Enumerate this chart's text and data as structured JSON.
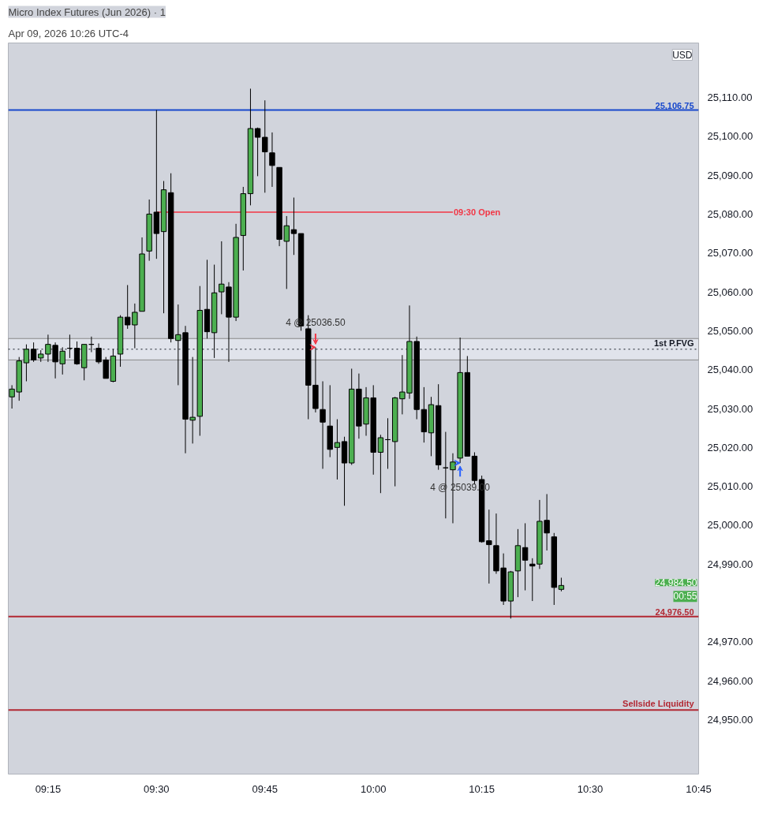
{
  "chart_data": {
    "type": "candlestick",
    "title": "Micro Index Futures (Jun 2026) · 1",
    "subtitle": "Apr 09, 2026 10:26 UTC-4",
    "x": [
      9.1667,
      9.1833,
      9.2,
      9.2167,
      9.2333,
      9.25,
      9.2667,
      9.2833,
      9.3,
      9.3167,
      9.3333,
      9.35,
      9.3667,
      9.3833,
      9.4,
      9.4167,
      9.4333,
      9.45,
      9.4667,
      9.4833,
      9.5,
      9.5167,
      9.5333,
      9.55,
      9.5667,
      9.5833,
      9.6,
      9.6167,
      9.6333,
      9.65,
      9.6667,
      9.6833,
      9.7,
      9.7167,
      9.7333,
      9.75,
      9.7667,
      9.7833,
      9.8,
      9.8167,
      9.8333,
      9.85,
      9.8667,
      9.8833,
      9.9,
      9.9167,
      9.9333,
      9.95,
      9.9667,
      9.9833,
      10.0,
      10.0167,
      10.0333,
      10.05,
      10.0667,
      10.0833,
      10.1,
      10.1167,
      10.1333,
      10.15,
      10.1667,
      10.1833,
      10.2,
      10.2167,
      10.2333,
      10.25,
      10.2667,
      10.2833,
      10.3,
      10.3167,
      10.3333,
      10.35,
      10.3667,
      10.3833,
      10.4,
      10.4167,
      10.4333
    ],
    "ohlc": [
      [
        25033,
        25036,
        25030,
        25035
      ],
      [
        25034.25,
        25043.25,
        25032,
        25042.25
      ],
      [
        25041.75,
        25046.5,
        25037,
        25045.25
      ],
      [
        25045.25,
        25047,
        25042,
        25042.5
      ],
      [
        25043,
        25045,
        25042,
        25044
      ],
      [
        25044,
        25049,
        25042,
        25046.5
      ],
      [
        25046.25,
        25047,
        25037.75,
        25042
      ],
      [
        25041.5,
        25045.75,
        25038.75,
        25044.75
      ],
      [
        25045.5,
        25049,
        25043,
        25045.5
      ],
      [
        25045.5,
        25047.25,
        25041.25,
        25041.5
      ],
      [
        25040.5,
        25046.5,
        25037.25,
        25046.5
      ],
      [
        25046.5,
        25048.5,
        25044.5,
        25046.5
      ],
      [
        25045.5,
        25046.75,
        25041.5,
        25042
      ],
      [
        25042.5,
        25043.25,
        25037.75,
        25037.75
      ],
      [
        25037,
        25045.25,
        25036.75,
        25043.5
      ],
      [
        25044,
        25054,
        25040.75,
        25053.5
      ],
      [
        25053.5,
        25061.75,
        25050.5,
        25051.5
      ],
      [
        25051.5,
        25057,
        25045.5,
        25054.75
      ],
      [
        25055,
        25074,
        25055,
        25069.75
      ],
      [
        25070.5,
        25083.75,
        25068,
        25080
      ],
      [
        25080.5,
        25106.75,
        25068.5,
        25075
      ],
      [
        25075.5,
        25088.5,
        25054.5,
        25086.25
      ],
      [
        25085.5,
        25090.5,
        25047,
        25048
      ],
      [
        25047.5,
        25056.75,
        25036,
        25049
      ],
      [
        25049.5,
        25051.25,
        25018.5,
        25027.25
      ],
      [
        25027,
        25043.25,
        25021,
        25027.75
      ],
      [
        25028,
        25061.5,
        25023,
        25055.25
      ],
      [
        25055.5,
        25068.25,
        25048,
        25049.75
      ],
      [
        25049.5,
        25067,
        25043,
        25059.75
      ],
      [
        25060,
        25073,
        25054.25,
        25062
      ],
      [
        25061.25,
        25062.5,
        25042,
        25053.5
      ],
      [
        25053.5,
        25077.5,
        25052.5,
        25074
      ],
      [
        25074.5,
        25087,
        25065.5,
        25085.25
      ],
      [
        25085.25,
        25112.25,
        25082.25,
        25102
      ],
      [
        25102,
        25102.25,
        25089.75,
        25099.75
      ],
      [
        25099.75,
        25109.25,
        25085.5,
        25096
      ],
      [
        25095.75,
        25101,
        25087,
        25092.5
      ],
      [
        25092,
        25092,
        25071.75,
        25073.5
      ],
      [
        25073,
        25079.5,
        25060.75,
        25077
      ],
      [
        25076,
        25084.25,
        25069.5,
        25075
      ],
      [
        25075,
        25075,
        25050,
        25051.25
      ],
      [
        25050.5,
        25054,
        25027.25,
        25036
      ],
      [
        25036,
        25045.75,
        25029,
        25030
      ],
      [
        25029.75,
        25037,
        25014.5,
        25026.5
      ],
      [
        25025.5,
        25036,
        25017.5,
        25019.5
      ],
      [
        25020,
        25027.25,
        25011.75,
        25021.25
      ],
      [
        25021.5,
        25022.75,
        25005,
        25016
      ],
      [
        25016,
        25040.25,
        25015.5,
        25035
      ],
      [
        25035,
        25039,
        25022.25,
        25025.5
      ],
      [
        25026,
        25035.5,
        25023,
        25032.75
      ],
      [
        25032.75,
        25036,
        25013,
        25018.75
      ],
      [
        25018.75,
        25023.25,
        25008.25,
        25022.5
      ],
      [
        25022,
        25027.5,
        25014.5,
        25022
      ],
      [
        25021.5,
        25033,
        25010,
        25032.75
      ],
      [
        25032.5,
        25043.75,
        25028.5,
        25034.25
      ],
      [
        25034,
        25056.5,
        25032.5,
        25047.25
      ],
      [
        25047.25,
        25048.5,
        25027.25,
        25029.75
      ],
      [
        25029.75,
        25035.5,
        25021.25,
        25024
      ],
      [
        25023.75,
        25033,
        25017.75,
        25031
      ],
      [
        25030.75,
        25036.25,
        25014.25,
        25015.5
      ],
      [
        25014.75,
        25024,
        25001.75,
        25014.75
      ],
      [
        25014.25,
        25018.5,
        25000.5,
        25016.25
      ],
      [
        25017.25,
        25048.25,
        25016,
        25039.25
      ],
      [
        25039.25,
        25043.5,
        25017.75,
        25017.75
      ],
      [
        25017.75,
        25018.75,
        25010.5,
        25011.5
      ],
      [
        25011.75,
        25012.75,
        24995.5,
        24995.75
      ],
      [
        24996,
        25004,
        24985,
        24995
      ],
      [
        24994.75,
        25003,
        24987.5,
        24988.25
      ],
      [
        24989,
        24992.75,
        24979.5,
        24980.5
      ],
      [
        24980.5,
        24988.25,
        24976,
        24988
      ],
      [
        24988.25,
        24999,
        24981.5,
        24994.75
      ],
      [
        24994.25,
        25000.5,
        24983.25,
        24991
      ],
      [
        24990,
        24991.5,
        24980.5,
        24989.5
      ],
      [
        24990,
        25006.5,
        24988.75,
        25001
      ],
      [
        25001.25,
        25008,
        24993.5,
        24998
      ],
      [
        24997,
        24998,
        24979.5,
        24984
      ],
      [
        24983.5,
        24986.5,
        24983,
        24984.5
      ]
    ],
    "colors": [
      "#4caf50",
      "#4caf50",
      "#4caf50",
      "#000000",
      "#4caf50",
      "#4caf50",
      "#000000",
      "#4caf50",
      "#000000",
      "#000000",
      "#4caf50",
      "#000000",
      "#000000",
      "#000000",
      "#4caf50",
      "#4caf50",
      "#000000",
      "#4caf50",
      "#4caf50",
      "#4caf50",
      "#000000",
      "#4caf50",
      "#000000",
      "#4caf50",
      "#000000",
      "#4caf50",
      "#4caf50",
      "#000000",
      "#4caf50",
      "#4caf50",
      "#000000",
      "#4caf50",
      "#4caf50",
      "#4caf50",
      "#000000",
      "#000000",
      "#000000",
      "#000000",
      "#4caf50",
      "#000000",
      "#000000",
      "#000000",
      "#000000",
      "#000000",
      "#000000",
      "#4caf50",
      "#000000",
      "#4caf50",
      "#000000",
      "#4caf50",
      "#000000",
      "#4caf50",
      "#000000",
      "#4caf50",
      "#4caf50",
      "#4caf50",
      "#000000",
      "#000000",
      "#4caf50",
      "#000000",
      "#000000",
      "#4caf50",
      "#4caf50",
      "#000000",
      "#000000",
      "#000000",
      "#000000",
      "#000000",
      "#000000",
      "#4caf50",
      "#4caf50",
      "#000000",
      "#000000",
      "#4caf50",
      "#000000",
      "#000000",
      "#4caf50"
    ],
    "series": [
      {
        "type": "line",
        "name": "09:30 Open",
        "x": [
          9.5,
          10.1833
        ],
        "values": [
          25080.5,
          25080.5
        ],
        "color": "#f23645"
      }
    ],
    "xlim": [
      9.1583,
      10.75
    ],
    "xticks": [
      {
        "value": 9.25,
        "label": "09:15"
      },
      {
        "value": 9.5,
        "label": "09:30"
      },
      {
        "value": 9.75,
        "label": "09:45"
      },
      {
        "value": 10,
        "label": "10:00"
      },
      {
        "value": 10.25,
        "label": "10:15"
      },
      {
        "value": 10.5,
        "label": "10:30"
      },
      {
        "value": 10.75,
        "label": "10:45"
      }
    ],
    "ylim": [
      24936,
      25124
    ],
    "yticks": [
      {
        "value": 24950,
        "label": "24,950.00"
      },
      {
        "value": 24960,
        "label": "24,960.00"
      },
      {
        "value": 24970,
        "label": "24,970.00"
      },
      {
        "value": 24990,
        "label": "24,990.00"
      },
      {
        "value": 25000,
        "label": "25,000.00"
      },
      {
        "value": 25010,
        "label": "25,010.00"
      },
      {
        "value": 25020,
        "label": "25,020.00"
      },
      {
        "value": 25030,
        "label": "25,030.00"
      },
      {
        "value": 25040,
        "label": "25,040.00"
      },
      {
        "value": 25050,
        "label": "25,050.00"
      },
      {
        "value": 25060,
        "label": "25,060.00"
      },
      {
        "value": 25070,
        "label": "25,070.00"
      },
      {
        "value": 25080,
        "label": "25,080.00"
      },
      {
        "value": 25090,
        "label": "25,090.00"
      },
      {
        "value": 25100,
        "label": "25,100.00"
      },
      {
        "value": 25110,
        "label": "25,110.00"
      }
    ],
    "grid": false,
    "ref_lines": [
      {
        "axis": "y",
        "value": 25106.75,
        "label": "25,106.75",
        "color": "#1848cc",
        "line_style": "solid"
      },
      {
        "axis": "y",
        "value": 25045.25,
        "label": "1st P.FVG",
        "color": "#131722",
        "line_style": "dotted"
      },
      {
        "axis": "y",
        "value": 24976.5,
        "label": "24,976.50",
        "color": "#b22833",
        "line_style": "solid"
      },
      {
        "axis": "y",
        "value": 24952.5,
        "label": "Sellside Liquidity",
        "color": "#b22833",
        "line_style": "solid"
      }
    ],
    "bands": [
      {
        "axis": "y",
        "from": 25042.5,
        "to": 25048,
        "label": null,
        "color": "#e0e3eb"
      }
    ],
    "annotations": [
      {
        "text": "4 @ 25036.50",
        "x": 9.8667,
        "y": 25045.75
      },
      {
        "text": "4 @ 25039.00",
        "x": 10.2,
        "y": 25016
      },
      "24,984.50",
      "00:55",
      "USD"
    ]
  }
}
